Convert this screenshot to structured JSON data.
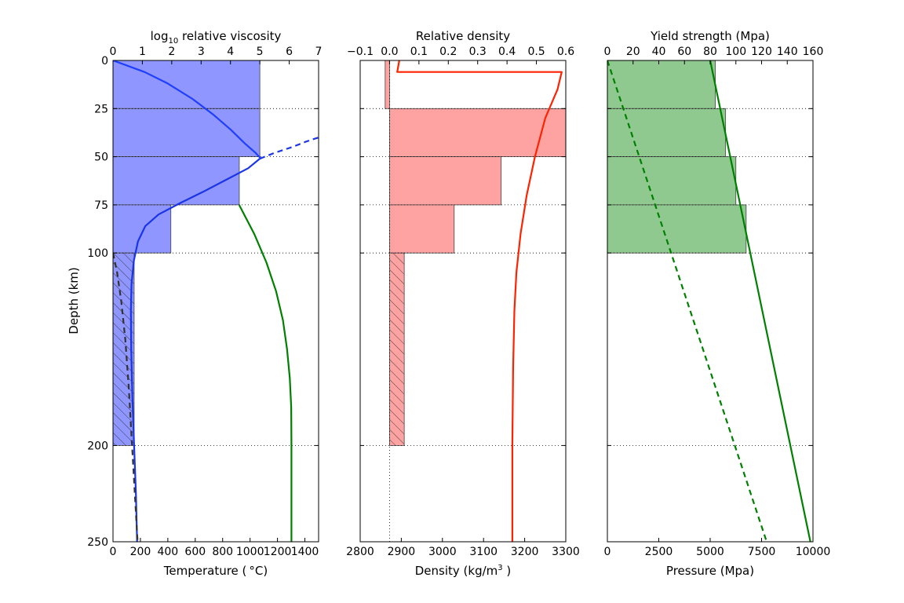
{
  "chart_data": [
    {
      "type": "bar",
      "panel": "viscosity-temperature",
      "title_top": [
        "log",
        "10",
        " relative viscosity"
      ],
      "top_axis": {
        "range": [
          0,
          7
        ],
        "ticks": [
          0,
          1,
          2,
          3,
          4,
          5,
          6,
          7
        ]
      },
      "bottom_axis": {
        "label": "Temperature ( °C)",
        "range": [
          0,
          1500
        ],
        "ticks": [
          0,
          200,
          400,
          600,
          800,
          1000,
          1200,
          1400
        ]
      },
      "ylabel": "Depth (km)",
      "ylim": [
        250,
        0
      ],
      "yticks": [
        0,
        25,
        50,
        75,
        100,
        200,
        250
      ],
      "bars": [
        {
          "top": 0,
          "bottom": 25,
          "value": 5.0,
          "hatched": false
        },
        {
          "top": 25,
          "bottom": 50,
          "value": 5.0,
          "hatched": false
        },
        {
          "top": 50,
          "bottom": 75,
          "value": 4.3,
          "hatched": false
        },
        {
          "top": 75,
          "bottom": 100,
          "value": 1.97,
          "hatched": false
        },
        {
          "top": 100,
          "bottom": 200,
          "value": 0.72,
          "hatched": true
        }
      ],
      "series": [
        {
          "axis": "bottom",
          "color": "#1f3fff",
          "style": "solid",
          "x": [
            0,
            230,
            400,
            580,
            730,
            860,
            960,
            1040,
            1080
          ],
          "y": [
            0,
            6,
            12,
            20,
            28,
            36,
            43,
            48,
            51
          ]
        },
        {
          "axis": "top",
          "color": "#1a35e8",
          "style": "solid",
          "x": [
            5.0,
            4.6,
            3.85,
            3.1,
            2.3,
            1.55,
            1.1,
            0.85,
            0.71,
            0.63,
            0.61,
            0.62,
            0.66,
            0.72,
            0.78,
            0.82
          ],
          "y": [
            51,
            56,
            62,
            68,
            74,
            80,
            86,
            94,
            104,
            116,
            130,
            150,
            175,
            200,
            225,
            250
          ]
        },
        {
          "axis": "top",
          "color": "#1a35e8",
          "style": "dashed",
          "x": [
            5.0,
            5.5,
            6.1,
            6.6,
            7.0
          ],
          "y": [
            51,
            48,
            45,
            42,
            40
          ]
        },
        {
          "axis": "bottom",
          "color": "#008000",
          "style": "solid",
          "x": [
            920,
            1030,
            1120,
            1190,
            1240,
            1270,
            1290,
            1300,
            1302,
            1302,
            1302
          ],
          "y": [
            75,
            90,
            105,
            120,
            135,
            150,
            165,
            180,
            200,
            220,
            250
          ]
        },
        {
          "axis": "bottom",
          "color": "#333333",
          "style": "dashed",
          "x": [
            0,
            30,
            60,
            90,
            115,
            135,
            155,
            175,
            180
          ],
          "y": [
            100,
            110,
            125,
            145,
            170,
            195,
            220,
            245,
            250
          ]
        }
      ]
    },
    {
      "type": "bar",
      "panel": "density",
      "title_top": "Relative density",
      "top_axis": {
        "range": [
          -0.1,
          0.6
        ],
        "ticks": [
          "−0.1",
          "0.0",
          "0.1",
          "0.2",
          "0.3",
          "0.4",
          "0.5",
          "0.6"
        ],
        "tick_values": [
          -0.1,
          0.0,
          0.1,
          0.2,
          0.3,
          0.4,
          0.5,
          0.6
        ]
      },
      "bottom_axis": {
        "label": [
          "Density (kg/m",
          "3",
          " )"
        ],
        "range": [
          2800,
          3300
        ],
        "ticks": [
          2800,
          2900,
          3000,
          3100,
          3200,
          3300
        ]
      },
      "ylim": [
        250,
        0
      ],
      "yticks": [
        0,
        25,
        50,
        75,
        100,
        200,
        250
      ],
      "bars": [
        {
          "top": 0,
          "bottom": 25,
          "value": -0.015,
          "hatched": false
        },
        {
          "top": 25,
          "bottom": 50,
          "value": 0.6,
          "hatched": false
        },
        {
          "top": 50,
          "bottom": 75,
          "value": 0.38,
          "hatched": false
        },
        {
          "top": 75,
          "bottom": 100,
          "value": 0.22,
          "hatched": false
        },
        {
          "top": 100,
          "bottom": 200,
          "value": 0.05,
          "hatched": true
        }
      ],
      "series": [
        {
          "axis": "bottom",
          "color": "#ff2200",
          "style": "solid",
          "x": [
            2895,
            2890,
            3290,
            3280,
            3250,
            3225,
            3205,
            3190,
            3180,
            3175,
            3172,
            3170,
            3170
          ],
          "y": [
            0,
            6,
            6,
            15,
            30,
            50,
            70,
            90,
            110,
            130,
            160,
            200,
            250
          ]
        }
      ],
      "reference_line": {
        "x": 0.0,
        "style": "dotted"
      }
    },
    {
      "type": "bar",
      "panel": "yield-strength",
      "title_top": "Yield strength (Mpa)",
      "top_axis": {
        "range": [
          0,
          160
        ],
        "ticks": [
          0,
          20,
          40,
          60,
          80,
          100,
          120,
          140,
          160
        ]
      },
      "bottom_axis": {
        "label": "Pressure (Mpa)",
        "range": [
          0,
          10000
        ],
        "ticks": [
          0,
          2500,
          5000,
          7500,
          10000
        ]
      },
      "ylim": [
        250,
        0
      ],
      "yticks": [
        0,
        25,
        50,
        75,
        100,
        200,
        250
      ],
      "bars": [
        {
          "top": 0,
          "bottom": 25,
          "value": 84,
          "hatched": false
        },
        {
          "top": 25,
          "bottom": 50,
          "value": 92,
          "hatched": false
        },
        {
          "top": 50,
          "bottom": 75,
          "value": 100,
          "hatched": false
        },
        {
          "top": 75,
          "bottom": 100,
          "value": 108,
          "hatched": false
        }
      ],
      "series": [
        {
          "axis": "top",
          "color": "#008000",
          "style": "solid",
          "x": [
            80,
            158
          ],
          "y": [
            0,
            250
          ]
        },
        {
          "axis": "bottom",
          "color": "#008000",
          "style": "dashed",
          "x": [
            0,
            7750
          ],
          "y": [
            0,
            250
          ]
        }
      ]
    }
  ],
  "colors": {
    "viscosity_fill": "#8f96ff",
    "density_fill": "#ffa2a2",
    "strength_fill": "#8fc98f",
    "frame": "#000000"
  }
}
